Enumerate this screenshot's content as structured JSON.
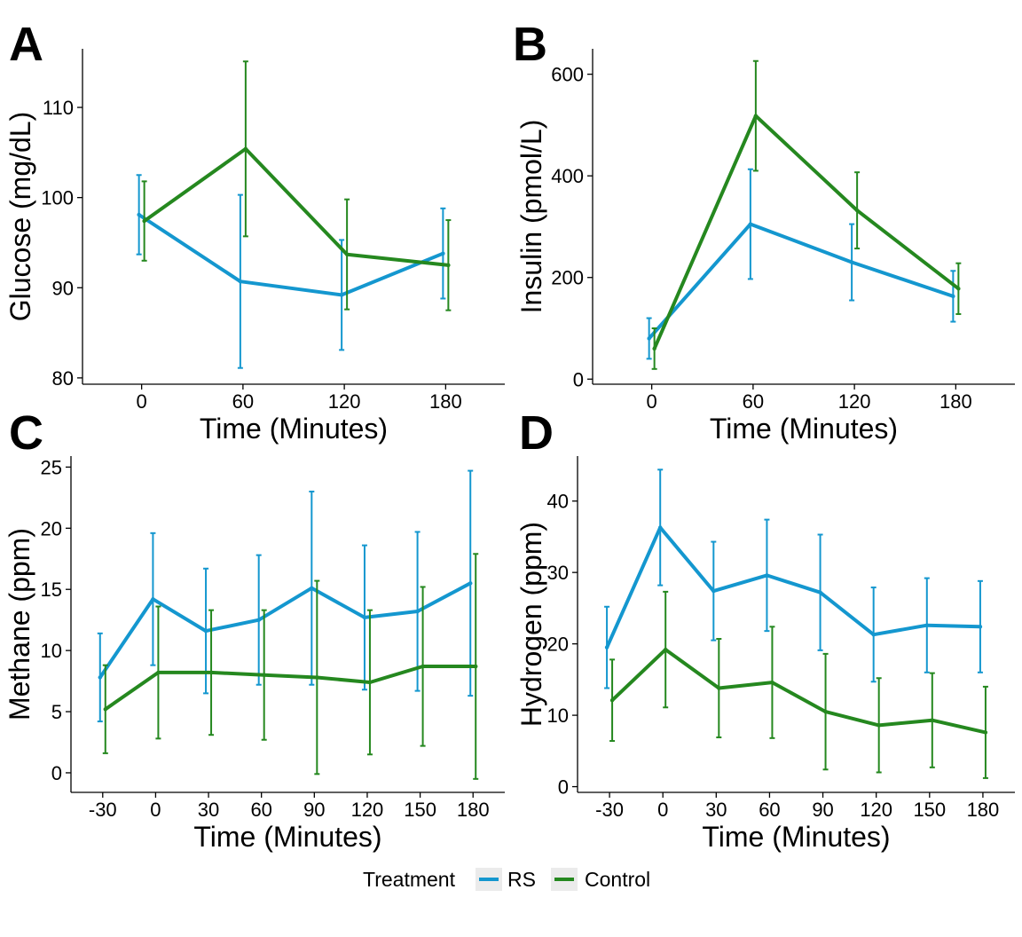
{
  "colors": {
    "RS": "#1497cf",
    "Control": "#25881f"
  },
  "legend": {
    "title": "Treatment",
    "items": [
      {
        "label": "RS",
        "color": "#1497cf"
      },
      {
        "label": "Control",
        "color": "#25881f"
      }
    ]
  },
  "chart_data": [
    {
      "panel": "A",
      "type": "line",
      "xlabel": "Time (Minutes)",
      "ylabel": "Glucose (mg/dL)",
      "x": [
        0,
        60,
        120,
        180
      ],
      "xticks": [
        0,
        60,
        120,
        180
      ],
      "xlim": [
        -35,
        215
      ],
      "yticks": [
        80,
        90,
        100,
        110
      ],
      "ylim": [
        79.3,
        116.5
      ],
      "series": [
        {
          "name": "RS",
          "values": [
            98.1,
            90.7,
            89.2,
            93.8
          ],
          "err": [
            4.4,
            9.6,
            6.1,
            5.0
          ]
        },
        {
          "name": "Control",
          "values": [
            97.4,
            105.4,
            93.7,
            92.5
          ],
          "err": [
            4.4,
            9.7,
            6.1,
            5.0
          ]
        }
      ]
    },
    {
      "panel": "B",
      "type": "line",
      "xlabel": "Time (Minutes)",
      "ylabel": "Insulin (pmol/L)",
      "x": [
        0,
        60,
        120,
        180
      ],
      "xticks": [
        0,
        60,
        120,
        180
      ],
      "xlim": [
        -35,
        215
      ],
      "yticks": [
        0,
        200,
        400,
        600
      ],
      "ylim": [
        -10,
        650
      ],
      "series": [
        {
          "name": "RS",
          "values": [
            80,
            305,
            230,
            163
          ],
          "err": [
            40,
            108,
            75,
            50
          ]
        },
        {
          "name": "Control",
          "values": [
            60,
            518,
            332,
            178
          ],
          "err": [
            40,
            108,
            75,
            50
          ]
        }
      ]
    },
    {
      "panel": "C",
      "type": "line",
      "xlabel": "Time (Minutes)",
      "ylabel": "Methane (ppm)",
      "x": [
        -30,
        0,
        30,
        60,
        90,
        120,
        150,
        180
      ],
      "xticks": [
        -30,
        0,
        30,
        60,
        90,
        120,
        150,
        180
      ],
      "xlim": [
        -48,
        198
      ],
      "yticks": [
        0,
        5,
        10,
        15,
        20,
        25
      ],
      "ylim": [
        -1.6,
        25.9
      ],
      "series": [
        {
          "name": "RS",
          "values": [
            7.8,
            14.2,
            11.6,
            12.5,
            15.1,
            12.7,
            13.2,
            15.5
          ],
          "err": [
            3.6,
            5.4,
            5.1,
            5.3,
            7.9,
            5.9,
            6.5,
            9.2
          ]
        },
        {
          "name": "Control",
          "values": [
            5.2,
            8.2,
            8.2,
            8.0,
            7.8,
            7.4,
            8.7,
            8.7
          ],
          "err": [
            3.6,
            5.4,
            5.1,
            5.3,
            7.9,
            5.9,
            6.5,
            9.2
          ]
        }
      ]
    },
    {
      "panel": "D",
      "type": "line",
      "xlabel": "Time (Minutes)",
      "ylabel": "Hydrogen (ppm)",
      "x": [
        -30,
        0,
        30,
        60,
        90,
        120,
        150,
        180
      ],
      "xticks": [
        -30,
        0,
        30,
        60,
        90,
        120,
        150,
        180
      ],
      "xlim": [
        -48,
        198
      ],
      "yticks": [
        0,
        10,
        20,
        30,
        40
      ],
      "ylim": [
        -0.8,
        46.3
      ],
      "series": [
        {
          "name": "RS",
          "values": [
            19.5,
            36.3,
            27.4,
            29.6,
            27.2,
            21.3,
            22.6,
            22.4
          ],
          "err": [
            5.7,
            8.1,
            6.9,
            7.8,
            8.1,
            6.6,
            6.6,
            6.4
          ]
        },
        {
          "name": "Control",
          "values": [
            12.1,
            19.2,
            13.8,
            14.6,
            10.5,
            8.6,
            9.3,
            7.6
          ],
          "err": [
            5.7,
            8.1,
            6.9,
            7.8,
            8.1,
            6.6,
            6.6,
            6.4
          ]
        }
      ]
    }
  ]
}
